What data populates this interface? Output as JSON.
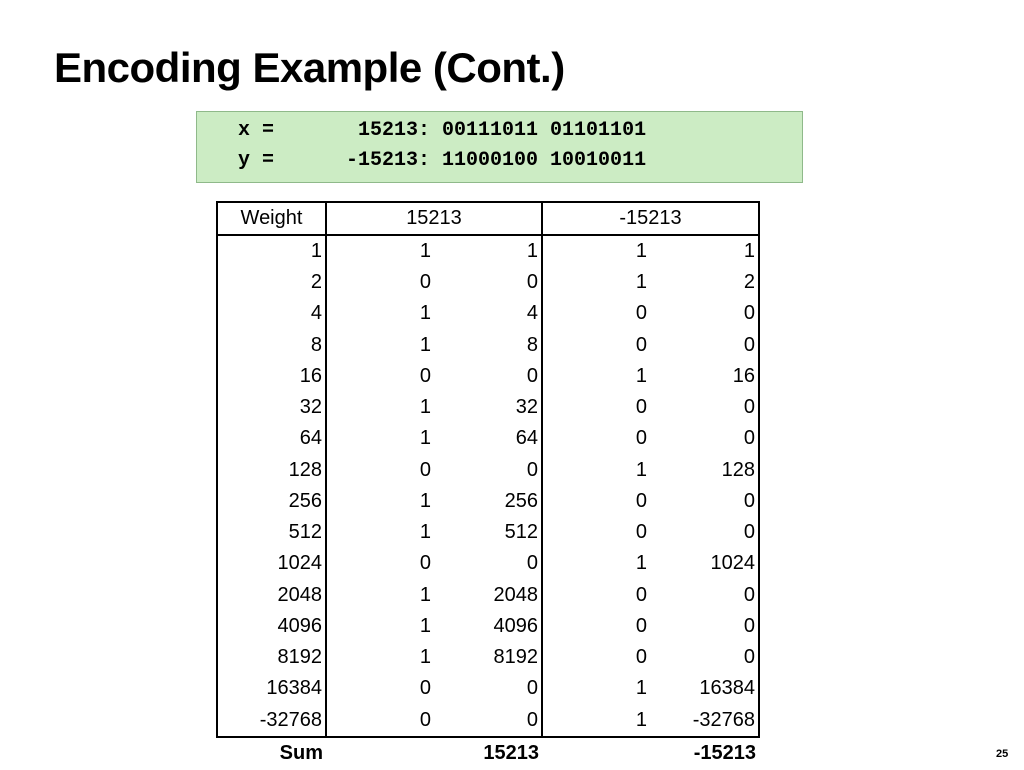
{
  "header": {
    "title": "Encoding Example (Cont.)"
  },
  "code": {
    "lines": [
      "x =       15213: 00111011 01101101",
      "y =      -15213: 11000100 10010011"
    ]
  },
  "table": {
    "header": [
      "Weight",
      "15213",
      "-15213"
    ],
    "rows": [
      [
        "1",
        "1",
        "1",
        "1",
        "1"
      ],
      [
        "2",
        "0",
        "0",
        "1",
        "2"
      ],
      [
        "4",
        "1",
        "4",
        "0",
        "0"
      ],
      [
        "8",
        "1",
        "8",
        "0",
        "0"
      ],
      [
        "16",
        "0",
        "0",
        "1",
        "16"
      ],
      [
        "32",
        "1",
        "32",
        "0",
        "0"
      ],
      [
        "64",
        "1",
        "64",
        "0",
        "0"
      ],
      [
        "128",
        "0",
        "0",
        "1",
        "128"
      ],
      [
        "256",
        "1",
        "256",
        "0",
        "0"
      ],
      [
        "512",
        "1",
        "512",
        "0",
        "0"
      ],
      [
        "1024",
        "0",
        "0",
        "1",
        "1024"
      ],
      [
        "2048",
        "1",
        "2048",
        "0",
        "0"
      ],
      [
        "4096",
        "1",
        "4096",
        "0",
        "0"
      ],
      [
        "8192",
        "1",
        "8192",
        "0",
        "0"
      ],
      [
        "16384",
        "0",
        "0",
        "1",
        "16384"
      ],
      [
        "-32768",
        "0",
        "0",
        "1",
        "-32768"
      ]
    ],
    "sum": [
      "Sum",
      "15213",
      "-15213"
    ]
  },
  "footer": {
    "page_number": "25"
  }
}
